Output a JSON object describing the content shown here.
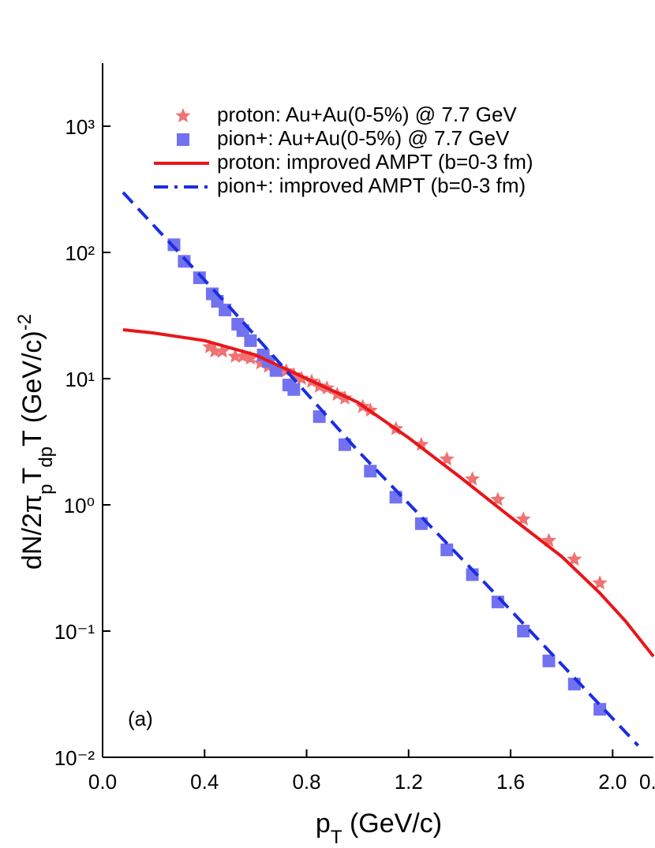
{
  "chart_data": {
    "type": "scatter",
    "x_label": [
      "p",
      "T",
      " (GeV/c)"
    ],
    "y_label": [
      "dN/2π",
      "p",
      "T",
      "dp",
      "T",
      " (GeV/c)",
      "-2"
    ],
    "annotations": [
      "(a)",
      "0."
    ],
    "xlim": [
      0,
      2.16
    ],
    "xticks": [
      {
        "value": 0,
        "label": "0.0"
      },
      0.4,
      0.8,
      1.2,
      1.6,
      {
        "value": 2.0,
        "label": "2.0"
      }
    ],
    "ylim": [
      0.01,
      3162
    ],
    "log_y": true,
    "yticks": [
      {
        "value": 0.01,
        "label": "10⁻²"
      },
      {
        "value": 0.1,
        "label": "10⁻¹"
      },
      {
        "value": 1,
        "label": "10⁰"
      },
      {
        "value": 10,
        "label": "10¹"
      },
      {
        "value": 100,
        "label": "10²"
      },
      {
        "value": 1000,
        "label": "10³"
      }
    ],
    "legend": "top",
    "series": [
      {
        "name": "proton: Au+Au(0-5%) @ 7.7 GeV",
        "color": "#f07272",
        "marker": "star",
        "x": [
          0.42,
          0.44,
          0.47,
          0.52,
          0.55,
          0.58,
          0.62,
          0.65,
          0.72,
          0.75,
          0.78,
          0.82,
          0.85,
          0.88,
          0.92,
          0.95,
          1.02,
          1.05,
          1.15,
          1.25,
          1.35,
          1.45,
          1.55,
          1.65,
          1.75,
          1.85,
          1.95
        ],
        "values": [
          17.8,
          16.5,
          16.5,
          15,
          15,
          14.5,
          13.3,
          12.5,
          11.5,
          10.7,
          10,
          9.5,
          8.7,
          8.4,
          7.5,
          7,
          6,
          5.6,
          4,
          3.0,
          2.3,
          1.6,
          1.1,
          0.77,
          0.52,
          0.37,
          0.24
        ]
      },
      {
        "name": "pion+: Au+Au(0-5%) @ 7.7 GeV",
        "color": "#7272f0",
        "marker": "square",
        "x": [
          0.28,
          0.32,
          0.38,
          0.43,
          0.45,
          0.48,
          0.53,
          0.55,
          0.58,
          0.63,
          0.65,
          0.68,
          0.73,
          0.75,
          0.85,
          0.95,
          1.05,
          1.15,
          1.25,
          1.35,
          1.45,
          1.55,
          1.65,
          1.75,
          1.85,
          1.95
        ],
        "values": [
          115,
          85,
          63,
          47,
          41,
          35,
          27,
          24,
          20,
          15.4,
          13.7,
          11.6,
          8.9,
          8.2,
          5.0,
          3.0,
          1.85,
          1.15,
          0.71,
          0.44,
          0.28,
          0.17,
          0.1,
          0.058,
          0.038,
          0.024
        ]
      },
      {
        "name": "proton: improved AMPT (b=0-3 fm)",
        "color": "#e8161a",
        "marker": "line",
        "x": [
          0.08,
          0.2,
          0.4,
          0.6,
          0.8,
          1.0,
          1.2,
          1.4,
          1.6,
          1.8,
          1.95,
          2.05,
          2.16
        ],
        "values": [
          24.4,
          23,
          20,
          15.4,
          10,
          6.5,
          3.4,
          1.67,
          0.8,
          0.39,
          0.2,
          0.12,
          0.063
        ]
      },
      {
        "name": "pion+: improved AMPT (b=0-3 fm)",
        "color": "#1a2ee0",
        "marker": "dash",
        "x": [
          0.08,
          0.5,
          1.0,
          1.5,
          2.1
        ],
        "values": [
          299,
          36.5,
          2.7,
          0.24,
          0.0124
        ]
      }
    ]
  }
}
